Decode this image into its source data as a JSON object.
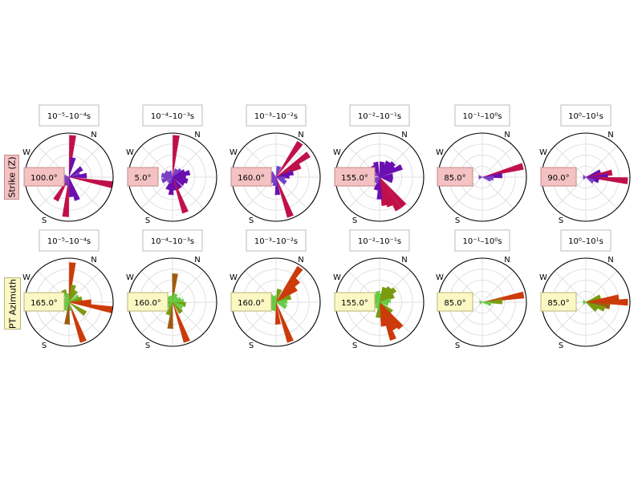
{
  "figure": {
    "rows": [
      {
        "label": "Strike (Z)",
        "label_bg": "#f4c2c2",
        "label_border": "#c48a8a",
        "box_bg": "#f4c2c2",
        "box_border": "#c48a8a",
        "scheme": "strike"
      },
      {
        "label": "PT Azimuth",
        "label_bg": "#fbf8c4",
        "label_border": "#b8b478",
        "box_bg": "#fbf8c4",
        "box_border": "#b8b478",
        "scheme": "pt"
      }
    ],
    "compass_labels": {
      "n": "N",
      "w": "W",
      "s": "S"
    }
  },
  "colors": {
    "strike_short": "#6a0fb0",
    "strike_mid": "#7a40c8",
    "strike_long": "#c0104a",
    "pt_short": "#66cc44",
    "pt_mid": "#7a9a10",
    "pt_long": "#cc3a0a",
    "pt_brown": "#a05a10",
    "grid": "#d9d9d9",
    "outline": "#000000"
  },
  "chart_data": [
    {
      "type": "rose",
      "row": "Strike (Z)",
      "period_label": "10⁻⁵–10⁻⁴s",
      "value_label": "100.0°",
      "peak_azimuth_deg": 100,
      "bins": [
        {
          "az": 5,
          "r": 0.95
        },
        {
          "az": 12,
          "r": 0.45
        },
        {
          "az": 55,
          "r": 0.35
        },
        {
          "az": 75,
          "r": 0.25
        },
        {
          "az": 85,
          "r": 0.4
        },
        {
          "az": 100,
          "r": 1.0
        },
        {
          "az": 160,
          "r": 0.55
        },
        {
          "az": 172,
          "r": 0.45
        },
        {
          "az": 185,
          "r": 0.9
        },
        {
          "az": 197,
          "r": 0.2
        },
        {
          "az": 210,
          "r": 0.6
        },
        {
          "az": 225,
          "r": 0.15
        },
        {
          "az": 250,
          "r": 0.1
        },
        {
          "az": 265,
          "r": 0.12
        },
        {
          "az": 280,
          "r": 0.15
        }
      ]
    },
    {
      "type": "rose",
      "row": "Strike (Z)",
      "period_label": "10⁻⁴–10⁻³s",
      "value_label": "5.0°",
      "peak_azimuth_deg": 5,
      "bins": [
        {
          "az": 5,
          "r": 0.95
        },
        {
          "az": 30,
          "r": 0.2
        },
        {
          "az": 50,
          "r": 0.25
        },
        {
          "az": 65,
          "r": 0.3
        },
        {
          "az": 75,
          "r": 0.4
        },
        {
          "az": 90,
          "r": 0.3
        },
        {
          "az": 105,
          "r": 0.35
        },
        {
          "az": 120,
          "r": 0.3
        },
        {
          "az": 145,
          "r": 0.3
        },
        {
          "az": 160,
          "r": 0.85
        },
        {
          "az": 175,
          "r": 0.3
        },
        {
          "az": 185,
          "r": 0.4
        },
        {
          "az": 200,
          "r": 0.3
        },
        {
          "az": 215,
          "r": 0.15
        },
        {
          "az": 250,
          "r": 0.25
        },
        {
          "az": 265,
          "r": 0.2
        },
        {
          "az": 280,
          "r": 0.25
        },
        {
          "az": 305,
          "r": 0.2
        },
        {
          "az": 330,
          "r": 0.15
        }
      ]
    },
    {
      "type": "rose",
      "row": "Strike (Z)",
      "period_label": "10⁻³–10⁻²s",
      "value_label": "160.0°",
      "peak_azimuth_deg": 160,
      "bins": [
        {
          "az": 15,
          "r": 0.25
        },
        {
          "az": 35,
          "r": 0.95
        },
        {
          "az": 55,
          "r": 0.9
        },
        {
          "az": 65,
          "r": 0.6
        },
        {
          "az": 75,
          "r": 0.4
        },
        {
          "az": 85,
          "r": 0.3
        },
        {
          "az": 100,
          "r": 0.2
        },
        {
          "az": 120,
          "r": 0.25
        },
        {
          "az": 160,
          "r": 0.95
        },
        {
          "az": 175,
          "r": 0.4
        },
        {
          "az": 190,
          "r": 0.2
        },
        {
          "az": 215,
          "r": 0.15
        },
        {
          "az": 230,
          "r": 0.2
        },
        {
          "az": 245,
          "r": 0.15
        },
        {
          "az": 265,
          "r": 0.12
        },
        {
          "az": 290,
          "r": 0.2
        },
        {
          "az": 310,
          "r": 0.15
        }
      ]
    },
    {
      "type": "rose",
      "row": "Strike (Z)",
      "period_label": "10⁻²–10⁻¹s",
      "value_label": "155.0°",
      "peak_azimuth_deg": 155,
      "bins": [
        {
          "az": 10,
          "r": 0.35
        },
        {
          "az": 20,
          "r": 0.3
        },
        {
          "az": 30,
          "r": 0.4
        },
        {
          "az": 45,
          "r": 0.45
        },
        {
          "az": 55,
          "r": 0.4
        },
        {
          "az": 65,
          "r": 0.55
        },
        {
          "az": 85,
          "r": 0.3
        },
        {
          "az": 105,
          "r": 0.3
        },
        {
          "az": 140,
          "r": 0.85
        },
        {
          "az": 150,
          "r": 0.85
        },
        {
          "az": 160,
          "r": 0.7
        },
        {
          "az": 170,
          "r": 0.65
        },
        {
          "az": 180,
          "r": 0.5
        },
        {
          "az": 195,
          "r": 0.3
        },
        {
          "az": 215,
          "r": 0.15
        },
        {
          "az": 250,
          "r": 0.15
        },
        {
          "az": 300,
          "r": 0.2
        },
        {
          "az": 330,
          "r": 0.3
        },
        {
          "az": 345,
          "r": 0.35
        }
      ]
    },
    {
      "type": "rose",
      "row": "Strike (Z)",
      "period_label": "10⁻¹–10⁰s",
      "value_label": "85.0°",
      "peak_azimuth_deg": 85,
      "bins": [
        {
          "az": 75,
          "r": 0.95
        },
        {
          "az": 85,
          "r": 0.45
        },
        {
          "az": 95,
          "r": 0.25
        },
        {
          "az": 105,
          "r": 0.2
        },
        {
          "az": 270,
          "r": 0.08
        }
      ]
    },
    {
      "type": "rose",
      "row": "Strike (Z)",
      "period_label": "10⁰–10¹s",
      "value_label": "90.0°",
      "peak_azimuth_deg": 90,
      "bins": [
        {
          "az": 70,
          "r": 0.35
        },
        {
          "az": 80,
          "r": 0.6
        },
        {
          "az": 88,
          "r": 0.5
        },
        {
          "az": 95,
          "r": 0.95
        },
        {
          "az": 105,
          "r": 0.3
        },
        {
          "az": 120,
          "r": 0.2
        },
        {
          "az": 260,
          "r": 0.05
        },
        {
          "az": 275,
          "r": 0.06
        }
      ]
    },
    {
      "type": "rose",
      "row": "PT Azimuth",
      "period_label": "10⁻⁵–10⁻⁴s",
      "value_label": "165.0°",
      "peak_azimuth_deg": 165,
      "bins": [
        {
          "az": 5,
          "r": 0.9
        },
        {
          "az": 15,
          "r": 0.4
        },
        {
          "az": 30,
          "r": 0.3
        },
        {
          "az": 60,
          "r": 0.25
        },
        {
          "az": 75,
          "r": 0.3
        },
        {
          "az": 90,
          "r": 0.5
        },
        {
          "az": 100,
          "r": 1.0
        },
        {
          "az": 125,
          "r": 0.45
        },
        {
          "az": 160,
          "r": 0.95
        },
        {
          "az": 175,
          "r": 0.2
        },
        {
          "az": 185,
          "r": 0.5
        },
        {
          "az": 210,
          "r": 0.2
        },
        {
          "az": 240,
          "r": 0.15
        },
        {
          "az": 270,
          "r": 0.15
        },
        {
          "az": 305,
          "r": 0.2
        },
        {
          "az": 335,
          "r": 0.3
        },
        {
          "az": 345,
          "r": 0.2
        }
      ]
    },
    {
      "type": "rose",
      "row": "PT Azimuth",
      "period_label": "10⁻⁴–10⁻³s",
      "value_label": "160.0°",
      "peak_azimuth_deg": 160,
      "bins": [
        {
          "az": 5,
          "r": 0.65
        },
        {
          "az": 20,
          "r": 0.2
        },
        {
          "az": 45,
          "r": 0.15
        },
        {
          "az": 70,
          "r": 0.2
        },
        {
          "az": 85,
          "r": 0.25
        },
        {
          "az": 100,
          "r": 0.3
        },
        {
          "az": 115,
          "r": 0.25
        },
        {
          "az": 140,
          "r": 0.3
        },
        {
          "az": 160,
          "r": 0.95
        },
        {
          "az": 185,
          "r": 0.6
        },
        {
          "az": 200,
          "r": 0.3
        },
        {
          "az": 230,
          "r": 0.15
        },
        {
          "az": 250,
          "r": 0.2
        },
        {
          "az": 265,
          "r": 0.3
        },
        {
          "az": 285,
          "r": 0.2
        },
        {
          "az": 310,
          "r": 0.15
        },
        {
          "az": 340,
          "r": 0.15
        }
      ]
    },
    {
      "type": "rose",
      "row": "PT Azimuth",
      "period_label": "10⁻³–10⁻²s",
      "value_label": "160.0°",
      "peak_azimuth_deg": 160,
      "bins": [
        {
          "az": 15,
          "r": 0.3
        },
        {
          "az": 35,
          "r": 0.95
        },
        {
          "az": 45,
          "r": 0.7
        },
        {
          "az": 55,
          "r": 0.55
        },
        {
          "az": 70,
          "r": 0.35
        },
        {
          "az": 85,
          "r": 0.25
        },
        {
          "az": 100,
          "r": 0.2
        },
        {
          "az": 115,
          "r": 0.25
        },
        {
          "az": 160,
          "r": 0.95
        },
        {
          "az": 175,
          "r": 0.5
        },
        {
          "az": 200,
          "r": 0.2
        },
        {
          "az": 225,
          "r": 0.2
        },
        {
          "az": 245,
          "r": 0.15
        },
        {
          "az": 270,
          "r": 0.12
        },
        {
          "az": 295,
          "r": 0.2
        },
        {
          "az": 320,
          "r": 0.2
        },
        {
          "az": 340,
          "r": 0.15
        }
      ]
    },
    {
      "type": "rose",
      "row": "PT Azimuth",
      "period_label": "10⁻²–10⁻¹s",
      "value_label": "155.0°",
      "peak_azimuth_deg": 155,
      "bins": [
        {
          "az": 10,
          "r": 0.2
        },
        {
          "az": 20,
          "r": 0.35
        },
        {
          "az": 35,
          "r": 0.4
        },
        {
          "az": 50,
          "r": 0.45
        },
        {
          "az": 65,
          "r": 0.35
        },
        {
          "az": 80,
          "r": 0.25
        },
        {
          "az": 100,
          "r": 0.2
        },
        {
          "az": 130,
          "r": 0.35
        },
        {
          "az": 140,
          "r": 0.75
        },
        {
          "az": 150,
          "r": 0.7
        },
        {
          "az": 160,
          "r": 0.9
        },
        {
          "az": 170,
          "r": 0.55
        },
        {
          "az": 185,
          "r": 0.35
        },
        {
          "az": 210,
          "r": 0.15
        },
        {
          "az": 260,
          "r": 0.1
        },
        {
          "az": 300,
          "r": 0.15
        },
        {
          "az": 330,
          "r": 0.2
        },
        {
          "az": 350,
          "r": 0.25
        }
      ]
    },
    {
      "type": "rose",
      "row": "PT Azimuth",
      "period_label": "10⁻¹–10⁰s",
      "value_label": "85.0°",
      "peak_azimuth_deg": 85,
      "bins": [
        {
          "az": 80,
          "r": 0.95
        },
        {
          "az": 88,
          "r": 0.45
        },
        {
          "az": 100,
          "r": 0.2
        },
        {
          "az": 265,
          "r": 0.06
        }
      ]
    },
    {
      "type": "rose",
      "row": "PT Azimuth",
      "period_label": "10⁰–10¹s",
      "value_label": "85.0°",
      "peak_azimuth_deg": 85,
      "bins": [
        {
          "az": 70,
          "r": 0.35
        },
        {
          "az": 82,
          "r": 0.75
        },
        {
          "az": 90,
          "r": 0.95
        },
        {
          "az": 100,
          "r": 0.55
        },
        {
          "az": 110,
          "r": 0.45
        },
        {
          "az": 125,
          "r": 0.3
        },
        {
          "az": 255,
          "r": 0.06
        },
        {
          "az": 280,
          "r": 0.05
        }
      ]
    }
  ]
}
